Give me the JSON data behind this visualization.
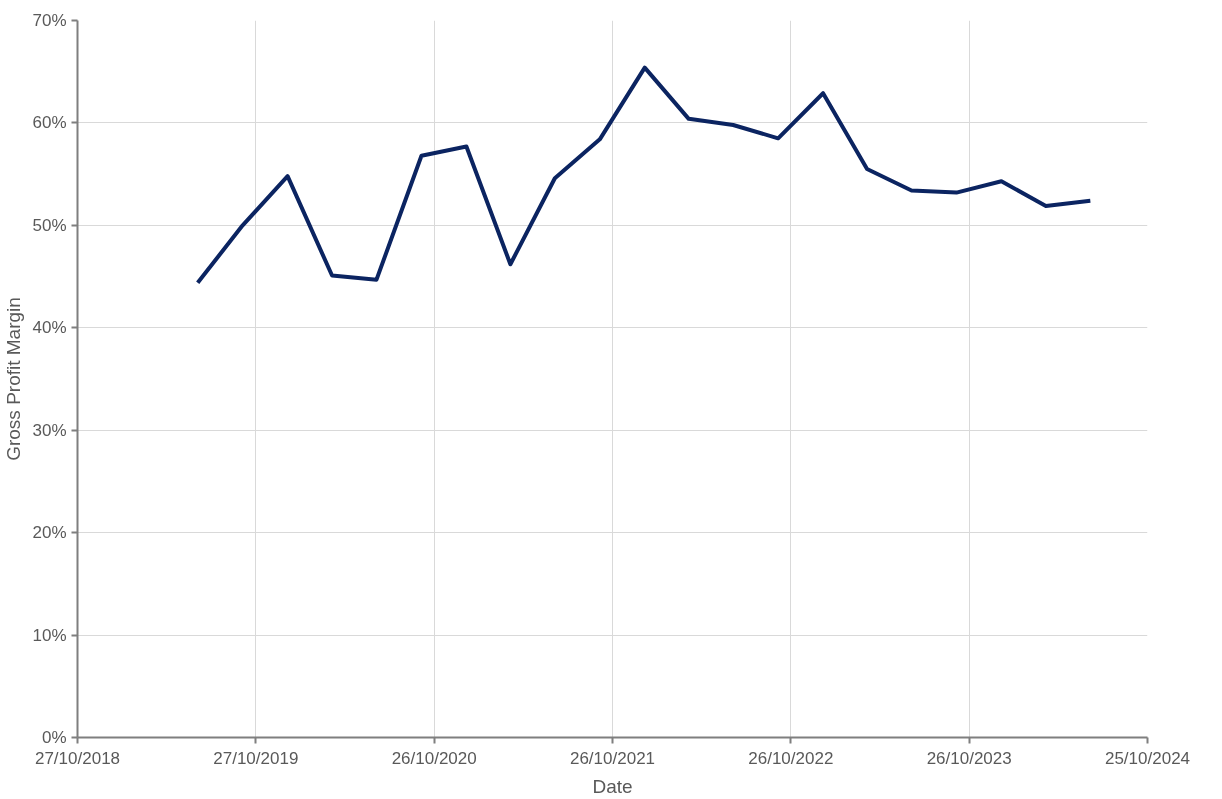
{
  "chart_data": {
    "type": "line",
    "xlabel": "Date",
    "ylabel": "Gross Profit Margin",
    "x": [
      "2019-06-30",
      "2019-09-30",
      "2019-12-31",
      "2020-03-31",
      "2020-06-30",
      "2020-09-30",
      "2020-12-31",
      "2021-03-31",
      "2021-06-30",
      "2021-09-30",
      "2021-12-31",
      "2022-03-31",
      "2022-06-30",
      "2022-09-30",
      "2022-12-31",
      "2023-03-31",
      "2023-06-30",
      "2023-09-30",
      "2023-12-31",
      "2024-03-31",
      "2024-06-30"
    ],
    "series": [
      {
        "color": "#0b2461",
        "values": [
          44.4,
          50.0,
          54.8,
          45.1,
          44.7,
          56.8,
          57.7,
          46.2,
          54.6,
          58.4,
          65.4,
          60.4,
          59.8,
          58.5,
          62.9,
          55.5,
          53.4,
          53.2,
          54.3,
          51.9,
          52.4
        ]
      }
    ],
    "xlim": [
      "2018-10-27",
      "2024-10-25"
    ],
    "xticks": [
      {
        "value": "2018-10-27",
        "label": "27/10/2018"
      },
      {
        "value": "2019-10-27",
        "label": "27/10/2019"
      },
      {
        "value": "2020-10-26",
        "label": "26/10/2020"
      },
      {
        "value": "2021-10-26",
        "label": "26/10/2021"
      },
      {
        "value": "2022-10-26",
        "label": "26/10/2022"
      },
      {
        "value": "2023-10-26",
        "label": "26/10/2023"
      },
      {
        "value": "2024-10-25",
        "label": "25/10/2024"
      }
    ],
    "ylim": [
      0,
      70
    ],
    "yticks": [
      {
        "value": 0,
        "label": "0%"
      },
      {
        "value": 10,
        "label": "10%"
      },
      {
        "value": 20,
        "label": "20%"
      },
      {
        "value": 30,
        "label": "30%"
      },
      {
        "value": 40,
        "label": "40%"
      },
      {
        "value": 50,
        "label": "50%"
      },
      {
        "value": 60,
        "label": "60%"
      },
      {
        "value": 70,
        "label": "70%"
      }
    ],
    "grid": true,
    "marker": "none",
    "line_style": "solid"
  }
}
